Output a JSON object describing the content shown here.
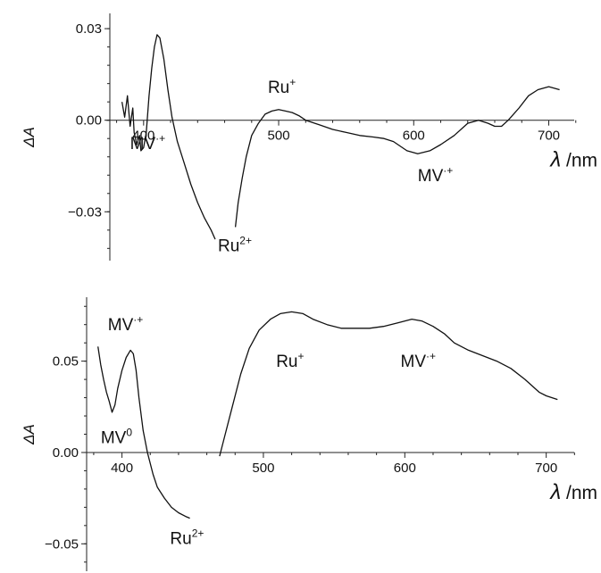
{
  "chart_data": [
    {
      "type": "line",
      "title": "",
      "xlabel": {
        "symbol": "λ",
        "unit": " /nm"
      },
      "ylabel": "ΔA",
      "xlim": [
        375,
        740
      ],
      "ylim": [
        -0.046,
        0.035
      ],
      "x_ticks": [
        {
          "value": 400,
          "label": "400"
        },
        {
          "value": 500,
          "label": "500"
        },
        {
          "value": 600,
          "label": "600"
        },
        {
          "value": 700,
          "label": "700"
        }
      ],
      "y_ticks": [
        {
          "value": 0.03,
          "label": "0.03"
        },
        {
          "value": 0.0,
          "label": "0.00"
        },
        {
          "value": -0.03,
          "label": "−0.03"
        }
      ],
      "series": [
        {
          "segments": [
            [
              [
                384,
                0.006
              ],
              [
                386,
                0.001
              ],
              [
                388,
                0.008
              ],
              [
                390,
                -0.002
              ],
              [
                392,
                0.004
              ],
              [
                393,
                -0.004
              ],
              [
                395,
                -0.008
              ],
              [
                397,
                -0.005
              ],
              [
                398,
                -0.01
              ],
              [
                400,
                -0.009
              ],
              [
                402,
                -0.004
              ],
              [
                404,
                0.008
              ],
              [
                406,
                0.017
              ],
              [
                408,
                0.024
              ],
              [
                410,
                0.028
              ],
              [
                412,
                0.027
              ],
              [
                415,
                0.02
              ],
              [
                418,
                0.01
              ],
              [
                421,
                0.001
              ],
              [
                425,
                -0.007
              ],
              [
                430,
                -0.014
              ],
              [
                435,
                -0.021
              ],
              [
                440,
                -0.027
              ],
              [
                445,
                -0.032
              ],
              [
                450,
                -0.036
              ],
              [
                453,
                -0.039
              ]
            ],
            [
              [
                468,
                -0.035
              ],
              [
                470,
                -0.027
              ],
              [
                473,
                -0.019
              ],
              [
                476,
                -0.012
              ],
              [
                480,
                -0.005
              ],
              [
                485,
                -0.001
              ],
              [
                490,
                0.002
              ],
              [
                495,
                0.003
              ],
              [
                500,
                0.0035
              ],
              [
                505,
                0.003
              ],
              [
                510,
                0.0025
              ],
              [
                515,
                0.0015
              ],
              [
                520,
                0.0
              ],
              [
                530,
                -0.0015
              ],
              [
                540,
                -0.003
              ],
              [
                550,
                -0.004
              ],
              [
                560,
                -0.005
              ],
              [
                570,
                -0.0055
              ],
              [
                578,
                -0.006
              ],
              [
                585,
                -0.007
              ],
              [
                595,
                -0.01
              ],
              [
                603,
                -0.011
              ],
              [
                612,
                -0.01
              ],
              [
                620,
                -0.008
              ],
              [
                630,
                -0.005
              ],
              [
                640,
                -0.001
              ],
              [
                648,
                0.0
              ],
              [
                655,
                -0.001
              ],
              [
                660,
                -0.002
              ],
              [
                665,
                -0.002
              ],
              [
                670,
                0.0
              ],
              [
                678,
                0.004
              ],
              [
                685,
                0.008
              ],
              [
                692,
                0.01
              ],
              [
                700,
                0.011
              ],
              [
                708,
                0.01
              ]
            ]
          ]
        }
      ],
      "annotations": [
        {
          "base": "MV",
          "sup": "·+",
          "x": 390,
          "y": -0.0095
        },
        {
          "base": "Ru",
          "sup": "2+",
          "x": 455,
          "y": -0.043
        },
        {
          "base": "Ru",
          "sup": "+",
          "x": 492,
          "y": 0.009
        },
        {
          "base": "MV",
          "sup": "·+",
          "x": 603,
          "y": -0.02
        }
      ]
    },
    {
      "type": "line",
      "title": "",
      "xlabel": {
        "symbol": "λ",
        "unit": " /nm"
      },
      "ylabel": "ΔA",
      "xlim": [
        375,
        740
      ],
      "ylim": [
        -0.065,
        0.085
      ],
      "x_ticks": [
        {
          "value": 400,
          "label": "400"
        },
        {
          "value": 500,
          "label": "500"
        },
        {
          "value": 600,
          "label": "600"
        },
        {
          "value": 700,
          "label": "700"
        }
      ],
      "y_ticks": [
        {
          "value": 0.05,
          "label": "0.05"
        },
        {
          "value": 0.0,
          "label": "0.00"
        },
        {
          "value": -0.05,
          "label": "−0.05"
        }
      ],
      "series": [
        {
          "segments": [
            [
              [
                383,
                0.058
              ],
              [
                385,
                0.048
              ],
              [
                387,
                0.04
              ],
              [
                389,
                0.033
              ],
              [
                391,
                0.028
              ],
              [
                393,
                0.022
              ],
              [
                395,
                0.026
              ],
              [
                397,
                0.035
              ],
              [
                400,
                0.045
              ],
              [
                403,
                0.052
              ],
              [
                406,
                0.056
              ],
              [
                408,
                0.054
              ],
              [
                410,
                0.045
              ],
              [
                412,
                0.03
              ],
              [
                415,
                0.012
              ],
              [
                418,
                0.0
              ],
              [
                422,
                -0.012
              ],
              [
                425,
                -0.019
              ],
              [
                430,
                -0.025
              ],
              [
                435,
                -0.03
              ],
              [
                440,
                -0.033
              ],
              [
                445,
                -0.035
              ],
              [
                448,
                -0.036
              ]
            ],
            [
              [
                469,
                -0.002
              ],
              [
                473,
                0.01
              ],
              [
                478,
                0.025
              ],
              [
                484,
                0.043
              ],
              [
                490,
                0.057
              ],
              [
                497,
                0.067
              ],
              [
                505,
                0.073
              ],
              [
                512,
                0.076
              ],
              [
                520,
                0.077
              ],
              [
                528,
                0.076
              ],
              [
                535,
                0.073
              ],
              [
                545,
                0.07
              ],
              [
                555,
                0.068
              ],
              [
                565,
                0.068
              ],
              [
                575,
                0.068
              ],
              [
                585,
                0.069
              ],
              [
                595,
                0.071
              ],
              [
                605,
                0.073
              ],
              [
                612,
                0.072
              ],
              [
                620,
                0.069
              ],
              [
                628,
                0.065
              ],
              [
                635,
                0.06
              ],
              [
                645,
                0.056
              ],
              [
                655,
                0.053
              ],
              [
                665,
                0.05
              ],
              [
                675,
                0.046
              ],
              [
                685,
                0.04
              ],
              [
                695,
                0.033
              ],
              [
                700,
                0.031
              ],
              [
                708,
                0.029
              ]
            ]
          ]
        }
      ],
      "annotations": [
        {
          "base": "MV",
          "sup": "·+",
          "x": 390,
          "y": 0.067
        },
        {
          "base": "MV",
          "sup": "0",
          "x": 385,
          "y": 0.005
        },
        {
          "base": "Ru",
          "sup": "2+",
          "x": 434,
          "y": -0.05
        },
        {
          "base": "Ru",
          "sup": "+",
          "x": 509,
          "y": 0.047
        },
        {
          "base": "MV",
          "sup": "·+",
          "x": 597,
          "y": 0.047
        }
      ]
    }
  ]
}
